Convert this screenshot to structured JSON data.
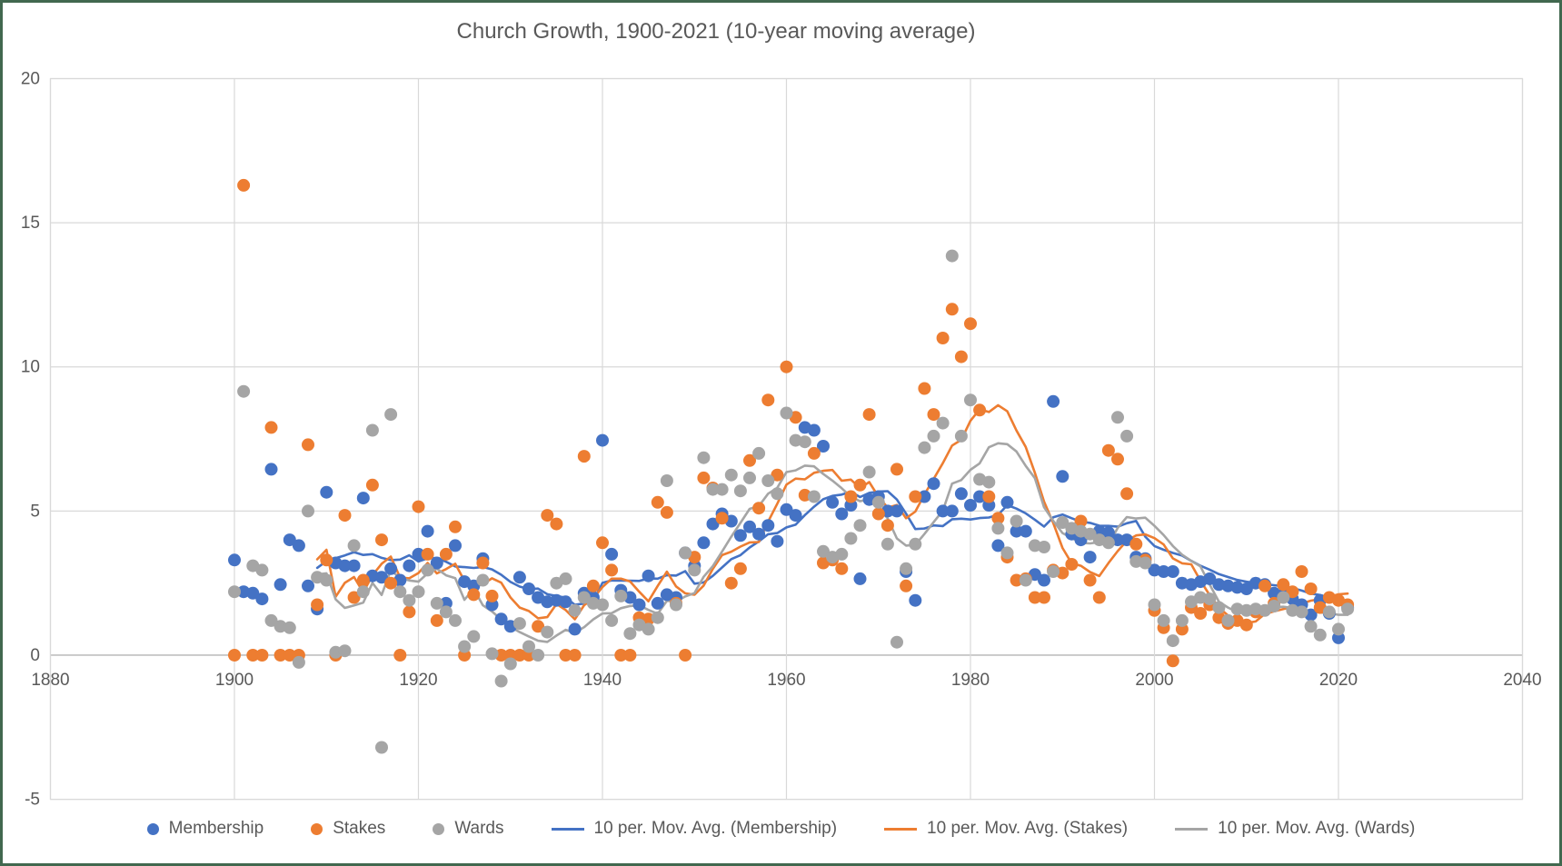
{
  "frame": {
    "border_color": "#41684F",
    "background": "#FFFFFF"
  },
  "chart_data": {
    "type": "scatter",
    "title": "Church Growth, 1900-2021 (10-year moving average)",
    "xlabel": "",
    "ylabel": "",
    "x_range": [
      1880,
      2040
    ],
    "y_range": [
      -5,
      20
    ],
    "x_ticks": [
      1880,
      1900,
      1920,
      1940,
      1960,
      1980,
      2000,
      2020,
      2040
    ],
    "y_ticks": [
      20,
      15,
      10,
      5,
      0,
      -5
    ],
    "grid": true,
    "legend_position": "bottom",
    "moving_average_period": 10,
    "axis_text_color": "#595959",
    "gridline_color": "#D9D9D9",
    "zero_axis_color": "#BFBFBF",
    "years": [
      1900,
      1901,
      1902,
      1903,
      1904,
      1905,
      1906,
      1907,
      1908,
      1909,
      1910,
      1911,
      1912,
      1913,
      1914,
      1915,
      1916,
      1917,
      1918,
      1919,
      1920,
      1921,
      1922,
      1923,
      1924,
      1925,
      1926,
      1927,
      1928,
      1929,
      1930,
      1931,
      1932,
      1933,
      1934,
      1935,
      1936,
      1937,
      1938,
      1939,
      1940,
      1941,
      1942,
      1943,
      1944,
      1945,
      1946,
      1947,
      1948,
      1949,
      1950,
      1951,
      1952,
      1953,
      1954,
      1955,
      1956,
      1957,
      1958,
      1959,
      1960,
      1961,
      1962,
      1963,
      1964,
      1965,
      1966,
      1967,
      1968,
      1969,
      1970,
      1971,
      1972,
      1973,
      1974,
      1975,
      1976,
      1977,
      1978,
      1979,
      1980,
      1981,
      1982,
      1983,
      1984,
      1985,
      1986,
      1987,
      1988,
      1989,
      1990,
      1991,
      1992,
      1993,
      1994,
      1995,
      1996,
      1997,
      1998,
      1999,
      2000,
      2001,
      2002,
      2003,
      2004,
      2005,
      2006,
      2007,
      2008,
      2009,
      2010,
      2011,
      2012,
      2013,
      2014,
      2015,
      2016,
      2017,
      2018,
      2019,
      2020,
      2021
    ],
    "series": [
      {
        "name": "Membership",
        "color": "#4472C4",
        "values": [
          3.3,
          2.2,
          2.15,
          1.95,
          6.45,
          2.45,
          4.0,
          3.8,
          2.4,
          1.6,
          5.65,
          3.2,
          3.1,
          3.1,
          5.45,
          2.75,
          2.7,
          3.0,
          2.6,
          3.1,
          3.5,
          4.3,
          3.2,
          1.8,
          3.8,
          2.55,
          2.4,
          3.35,
          1.75,
          1.25,
          1.0,
          2.7,
          2.3,
          2.0,
          1.85,
          1.9,
          1.85,
          0.9,
          2.15,
          2.0,
          7.45,
          3.5,
          2.25,
          2.0,
          1.75,
          2.75,
          1.8,
          2.1,
          2.0,
          3.55,
          3.1,
          3.9,
          4.55,
          4.9,
          4.65,
          4.15,
          4.45,
          4.2,
          4.5,
          3.95,
          5.05,
          4.85,
          7.9,
          7.8,
          7.25,
          5.3,
          4.9,
          5.2,
          2.65,
          5.4,
          5.5,
          5.0,
          5.0,
          2.9,
          1.9,
          5.5,
          5.95,
          5.0,
          5.0,
          5.6,
          5.2,
          5.5,
          5.2,
          3.8,
          5.3,
          4.3,
          4.3,
          2.8,
          2.6,
          8.8,
          6.2,
          4.2,
          4.0,
          3.4,
          4.3,
          4.25,
          4.0,
          4.0,
          3.4,
          3.35,
          2.95,
          2.9,
          2.9,
          2.5,
          2.45,
          2.55,
          2.65,
          2.45,
          2.4,
          2.35,
          2.3,
          2.5,
          2.45,
          2.15,
          2.1,
          1.95,
          1.75,
          1.4,
          1.9,
          1.45,
          0.6,
          1.65
        ]
      },
      {
        "name": "Stakes",
        "color": "#ED7D31",
        "values": [
          0.0,
          16.3,
          0.0,
          0.0,
          7.9,
          0.0,
          0.0,
          0.0,
          7.3,
          1.75,
          3.3,
          0.0,
          4.85,
          2.0,
          2.6,
          5.9,
          4.0,
          2.5,
          0.0,
          1.5,
          5.15,
          3.5,
          1.2,
          3.5,
          4.45,
          0.0,
          2.1,
          3.2,
          2.05,
          0.0,
          0.0,
          0.0,
          0.0,
          1.0,
          4.85,
          4.55,
          0.0,
          0.0,
          6.9,
          2.4,
          3.9,
          2.95,
          0.0,
          0.0,
          1.3,
          1.25,
          5.3,
          4.95,
          1.8,
          0.0,
          3.4,
          6.15,
          5.8,
          4.75,
          2.5,
          3.0,
          6.75,
          5.1,
          8.85,
          6.25,
          10.0,
          8.25,
          5.55,
          7.0,
          3.2,
          3.3,
          3.0,
          5.5,
          5.9,
          8.35,
          4.9,
          4.5,
          6.45,
          2.4,
          5.5,
          9.25,
          8.35,
          11.0,
          12.0,
          10.35,
          11.5,
          8.5,
          5.5,
          4.75,
          3.4,
          2.6,
          2.65,
          2.0,
          2.0,
          2.95,
          2.85,
          3.15,
          4.65,
          2.6,
          2.0,
          7.1,
          6.8,
          5.6,
          3.85,
          3.3,
          1.55,
          0.95,
          -0.2,
          0.9,
          1.65,
          1.45,
          1.75,
          1.3,
          1.1,
          1.2,
          1.05,
          1.5,
          2.4,
          1.8,
          2.45,
          2.2,
          2.9,
          2.3,
          1.65,
          2.0,
          1.9,
          1.75
        ]
      },
      {
        "name": "Wards",
        "color": "#A5A5A5",
        "values": [
          2.2,
          9.15,
          3.1,
          2.95,
          1.2,
          1.0,
          0.95,
          -0.25,
          5.0,
          2.7,
          2.6,
          0.1,
          0.15,
          3.8,
          2.2,
          7.8,
          -3.2,
          8.35,
          2.2,
          1.9,
          2.2,
          2.95,
          1.8,
          1.5,
          1.2,
          0.3,
          0.65,
          2.6,
          0.05,
          -0.9,
          -0.3,
          1.1,
          0.3,
          0.0,
          0.8,
          2.5,
          2.65,
          1.55,
          2.0,
          1.8,
          1.75,
          1.2,
          2.05,
          0.75,
          1.05,
          0.9,
          1.3,
          6.05,
          1.75,
          3.55,
          2.95,
          6.85,
          5.75,
          5.75,
          6.25,
          5.7,
          6.15,
          7.0,
          6.05,
          5.6,
          8.4,
          7.45,
          7.4,
          5.5,
          3.6,
          3.4,
          3.5,
          4.05,
          4.5,
          6.35,
          5.3,
          3.85,
          0.45,
          3.0,
          3.85,
          7.2,
          7.6,
          8.05,
          13.85,
          7.6,
          8.85,
          6.1,
          6.0,
          4.4,
          3.55,
          4.65,
          2.6,
          3.8,
          3.75,
          2.9,
          4.6,
          4.4,
          4.3,
          4.2,
          4.0,
          3.9,
          8.25,
          7.6,
          3.25,
          3.2,
          1.75,
          1.2,
          0.5,
          1.2,
          1.85,
          2.0,
          1.95,
          1.65,
          1.2,
          1.6,
          1.55,
          1.6,
          1.55,
          1.7,
          2.0,
          1.55,
          1.5,
          1.0,
          0.7,
          1.5,
          0.9,
          1.6
        ]
      }
    ],
    "legend_items": [
      {
        "label": "Membership",
        "marker": "dot",
        "color": "#4472C4"
      },
      {
        "label": "Stakes",
        "marker": "dot",
        "color": "#ED7D31"
      },
      {
        "label": "Wards",
        "marker": "dot",
        "color": "#A5A5A5"
      },
      {
        "label": "10 per. Mov. Avg. (Membership)",
        "marker": "line",
        "color": "#4472C4"
      },
      {
        "label": "10 per. Mov. Avg. (Stakes)",
        "marker": "line",
        "color": "#ED7D31"
      },
      {
        "label": "10 per. Mov. Avg. (Wards)",
        "marker": "line",
        "color": "#A5A5A5"
      }
    ]
  }
}
